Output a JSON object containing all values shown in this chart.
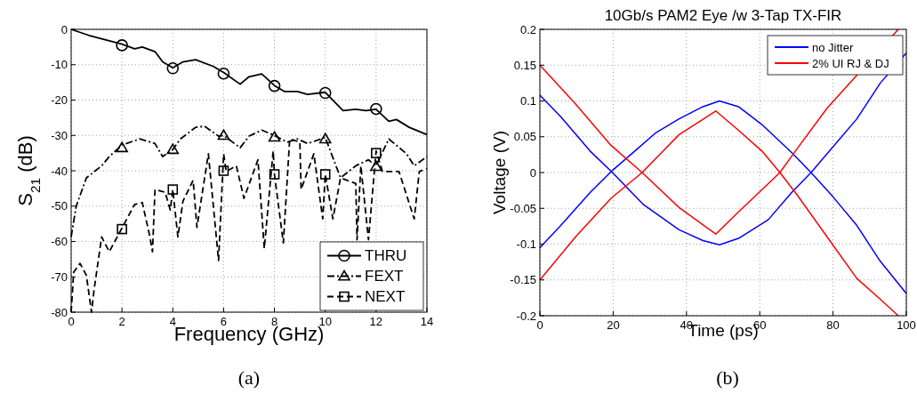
{
  "chart_data": [
    {
      "type": "line",
      "xlabel": "Frequency (GHz)",
      "ylabel": "S$_{21}$ (dB)",
      "xlim": [
        0,
        14
      ],
      "ylim": [
        -80,
        0
      ],
      "xticks": [
        0,
        2,
        4,
        6,
        8,
        10,
        12,
        14
      ],
      "yticks": [
        -80,
        -70,
        -60,
        -50,
        -40,
        -30,
        -20,
        -10,
        0
      ],
      "grid": true,
      "legend": "bottom right",
      "annotations": [
        "(a)"
      ],
      "series": [
        {
          "name": "THRU",
          "color": "#000000",
          "line_style": "solid",
          "x": [
            0,
            0.7,
            2,
            2.5,
            2.8,
            3.3,
            3.6,
            4,
            4.4,
            4.9,
            5.6,
            6,
            6.65,
            7,
            7.5,
            8,
            8.4,
            8.9,
            9.3,
            10,
            10.7,
            11.2,
            11.6,
            12,
            12.5,
            12.8,
            13.3,
            14
          ],
          "values": [
            0,
            -1.7,
            -4.2,
            -5.5,
            -5,
            -6.3,
            -9.2,
            -10.9,
            -9.2,
            -8.6,
            -10.5,
            -12.2,
            -15.5,
            -13.4,
            -12.6,
            -15.9,
            -17.6,
            -17.6,
            -18.4,
            -17.8,
            -23,
            -22.6,
            -23,
            -22.6,
            -26,
            -25.5,
            -27.7,
            -29.8
          ]
        },
        {
          "type": "scatter",
          "color": "#000000",
          "marker": "circle",
          "x": [
            2,
            4,
            6,
            8,
            10,
            12
          ],
          "values": [
            -4.5,
            -11,
            -12.5,
            -16,
            -18,
            -22.5
          ]
        },
        {
          "name": "FEXT",
          "color": "#000000",
          "line_style": "dashdot",
          "x": [
            0,
            0.2,
            0.6,
            1.2,
            1.5,
            2,
            2.7,
            3.3,
            3.6,
            4,
            4.3,
            4.9,
            5.25,
            5.8,
            6,
            6.65,
            7,
            7.5,
            8,
            8.5,
            8.9,
            9.3,
            10,
            10.6,
            11.2,
            11.7,
            12,
            12.5,
            13.2,
            13.5,
            14
          ],
          "values": [
            -58.7,
            -50,
            -42,
            -38.6,
            -36,
            -32.7,
            -31,
            -32.3,
            -36,
            -34,
            -31,
            -27.7,
            -27.4,
            -30.2,
            -30,
            -33.5,
            -30.2,
            -28.5,
            -30,
            -31.9,
            -31,
            -32.3,
            -30.6,
            -42,
            -38.6,
            -36.9,
            -38.6,
            -31,
            -35.2,
            -38.6,
            -36
          ]
        },
        {
          "type": "scatter",
          "color": "#000000",
          "marker": "triangle",
          "x": [
            2,
            4,
            6,
            8,
            10,
            12
          ],
          "values": [
            -33.5,
            -34,
            -30,
            -30.5,
            -31,
            -38.8
          ]
        },
        {
          "name": "NEXT",
          "color": "#000000",
          "line_style": "dashed",
          "x": [
            0,
            0.1,
            0.35,
            0.6,
            0.8,
            0.9,
            1.2,
            1.5,
            2,
            2.5,
            2.8,
            3.1,
            3.2,
            3.3,
            3.7,
            3.9,
            4,
            4.2,
            4.4,
            4.8,
            4.95,
            5.4,
            5.8,
            6,
            6.1,
            6.5,
            6.8,
            7.35,
            7.6,
            7.95,
            8,
            8.35,
            8.6,
            9,
            9.05,
            9.55,
            9.9,
            10,
            10.3,
            10.6,
            11.2,
            11.25,
            11.4,
            11.7,
            12,
            12.25,
            12.9,
            13.5,
            13.7,
            14
          ],
          "values": [
            -80,
            -68.7,
            -66.2,
            -69.6,
            -80,
            -73.8,
            -58.7,
            -62.9,
            -56.2,
            -49.5,
            -49,
            -58.7,
            -62.9,
            -45.3,
            -46.1,
            -51.1,
            -45.3,
            -58.7,
            -48.6,
            -42.7,
            -56,
            -35.2,
            -65.4,
            -35.2,
            -40.2,
            -38.6,
            -47.8,
            -36.9,
            -62,
            -34.4,
            -41,
            -60.4,
            -31,
            -31.9,
            -45.3,
            -35.2,
            -53.6,
            -41,
            -53.6,
            -42,
            -43.6,
            -59.5,
            -38.6,
            -59.5,
            -34.4,
            -40.2,
            -40.2,
            -53.6,
            -40.2,
            -39.4
          ]
        },
        {
          "type": "scatter",
          "color": "#000000",
          "marker": "square",
          "x": [
            2,
            4,
            6,
            8,
            10,
            12
          ],
          "values": [
            -56.5,
            -45.3,
            -40,
            -41,
            -41,
            -35
          ]
        }
      ]
    },
    {
      "type": "line",
      "title": "10Gb/s PAM2 Eye /w 3-Tap TX-FIR",
      "xlabel": "Time (ps)",
      "ylabel": "Voltage (V)",
      "xlim": [
        0,
        100
      ],
      "ylim": [
        -0.2,
        0.2
      ],
      "xticks": [
        0,
        20,
        40,
        60,
        80,
        100
      ],
      "yticks": [
        -0.2,
        -0.15,
        -0.1,
        -0.05,
        0,
        0.05,
        0.1,
        0.15,
        0.2
      ],
      "grid": true,
      "legend": "top right",
      "annotations": [
        "(b)"
      ],
      "series": [
        {
          "name": "no Jitter",
          "color": "#0000ff",
          "line_style": "solid",
          "x": [
            0,
            5.7,
            13.7,
            19.8,
            25.9,
            31.5,
            38,
            44.5,
            49,
            54.2,
            60.6,
            68.7,
            74,
            80,
            86.5,
            92.9,
            100
          ],
          "values": [
            -0.105,
            -0.074,
            -0.028,
            0.003,
            0.03,
            0.055,
            0.075,
            0.092,
            0.1,
            0.092,
            0.067,
            0.028,
            0,
            -0.034,
            -0.074,
            -0.124,
            -0.169
          ]
        },
        {
          "color": "#0000ff",
          "line_style": "solid",
          "x": [
            0,
            5.7,
            13.7,
            19.8,
            28.3,
            38,
            44.5,
            49,
            54.2,
            62.3,
            68.7,
            74,
            80,
            86.5,
            92.9,
            100
          ],
          "values": [
            0.108,
            0.078,
            0.03,
            0,
            -0.045,
            -0.08,
            -0.095,
            -0.101,
            -0.092,
            -0.066,
            -0.028,
            0,
            0.036,
            0.075,
            0.125,
            0.167
          ]
        },
        {
          "name": "2% UI RJ & DJ",
          "color": "#ff0000",
          "line_style": "solid",
          "x": [
            0,
            9.7,
            19.4,
            27.9,
            38,
            48,
            54.2,
            60.6,
            65.5,
            70.3,
            78.4,
            86.5,
            92.9,
            97.8
          ],
          "values": [
            -0.15,
            -0.09,
            -0.036,
            0,
            0.053,
            0.086,
            0.059,
            0.03,
            0,
            -0.032,
            -0.09,
            -0.148,
            -0.177,
            -0.2
          ]
        },
        {
          "color": "#ff0000",
          "line_style": "solid",
          "x": [
            0,
            9.7,
            19.4,
            27.9,
            38,
            48,
            54.2,
            60.6,
            65.5,
            70.3,
            78.4,
            97.8
          ],
          "values": [
            0.15,
            0.096,
            0.038,
            0,
            -0.049,
            -0.086,
            -0.055,
            -0.024,
            0,
            0.034,
            0.09,
            0.2
          ]
        }
      ]
    }
  ]
}
